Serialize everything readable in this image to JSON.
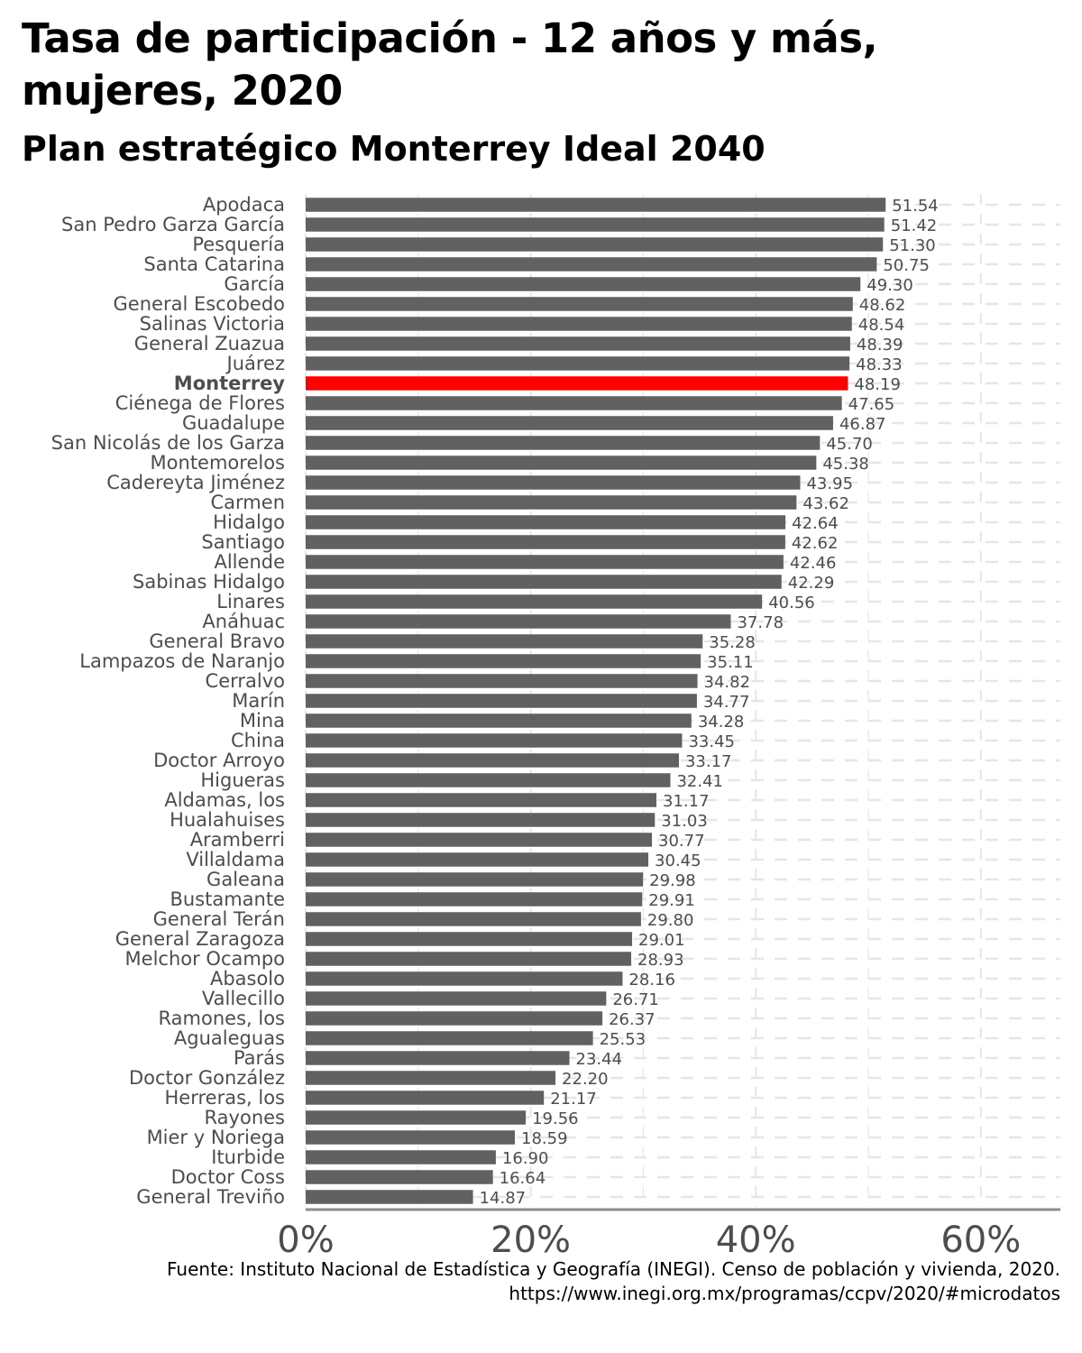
{
  "header": {
    "title": "Tasa de participación - 12 años y más, mujeres, 2020",
    "subtitle": "Plan estratégico Monterrey Ideal 2040"
  },
  "caption": "Fuente: Instituto Nacional de Estadística y Geografía (INEGI). Censo de población y vivienda, 2020. https://www.inegi.org.mx/programas/ccpv/2020/#microdatos",
  "colors": {
    "bar": "#616161",
    "highlight": "#ff0000",
    "grid": "#e6e6e6",
    "axis": "#8c8c8c"
  },
  "chart_data": {
    "type": "bar",
    "orientation": "horizontal",
    "highlight": "Monterrey",
    "x_tick_labels": [
      "0%",
      "20%",
      "40%",
      "60%"
    ],
    "x_ticks": [
      0,
      20,
      40,
      60
    ],
    "xlim": [
      0,
      67
    ],
    "grid": true,
    "categories": [
      "Apodaca",
      "San Pedro Garza García",
      "Pesquería",
      "Santa Catarina",
      "García",
      "General Escobedo",
      "Salinas Victoria",
      "General Zuazua",
      "Juárez",
      "Monterrey",
      "Ciénega de Flores",
      "Guadalupe",
      "San Nicolás de los Garza",
      "Montemorelos",
      "Cadereyta Jiménez",
      "Carmen",
      "Hidalgo",
      "Santiago",
      "Allende",
      "Sabinas Hidalgo",
      "Linares",
      "Anáhuac",
      "General Bravo",
      "Lampazos de Naranjo",
      "Cerralvo",
      "Marín",
      "Mina",
      "China",
      "Doctor Arroyo",
      "Higueras",
      "Aldamas, los",
      "Hualahuises",
      "Aramberri",
      "Villaldama",
      "Galeana",
      "Bustamante",
      "General Terán",
      "General Zaragoza",
      "Melchor Ocampo",
      "Abasolo",
      "Vallecillo",
      "Ramones, los",
      "Agualeguas",
      "Parás",
      "Doctor González",
      "Herreras, los",
      "Rayones",
      "Mier y Noriega",
      "Iturbide",
      "Doctor Coss",
      "General Treviño"
    ],
    "values": [
      51.54,
      51.42,
      51.3,
      50.75,
      49.3,
      48.62,
      48.54,
      48.39,
      48.33,
      48.19,
      47.65,
      46.87,
      45.7,
      45.38,
      43.95,
      43.62,
      42.64,
      42.62,
      42.46,
      42.29,
      40.56,
      37.78,
      35.28,
      35.11,
      34.82,
      34.77,
      34.28,
      33.45,
      33.17,
      32.41,
      31.17,
      31.03,
      30.77,
      30.45,
      29.98,
      29.91,
      29.8,
      29.01,
      28.93,
      28.16,
      26.71,
      26.37,
      25.53,
      23.44,
      22.2,
      21.17,
      19.56,
      18.59,
      16.9,
      16.64,
      14.87
    ],
    "value_labels": [
      "51.54",
      "51.42",
      "51.30",
      "50.75",
      "49.30",
      "48.62",
      "48.54",
      "48.39",
      "48.33",
      "48.19",
      "47.65",
      "46.87",
      "45.70",
      "45.38",
      "43.95",
      "43.62",
      "42.64",
      "42.62",
      "42.46",
      "42.29",
      "40.56",
      "37.78",
      "35.28",
      "35.11",
      "34.82",
      "34.77",
      "34.28",
      "33.45",
      "33.17",
      "32.41",
      "31.17",
      "31.03",
      "30.77",
      "30.45",
      "29.98",
      "29.91",
      "29.80",
      "29.01",
      "28.93",
      "28.16",
      "26.71",
      "26.37",
      "25.53",
      "23.44",
      "22.20",
      "21.17",
      "19.56",
      "18.59",
      "16.90",
      "16.64",
      "14.87"
    ]
  }
}
